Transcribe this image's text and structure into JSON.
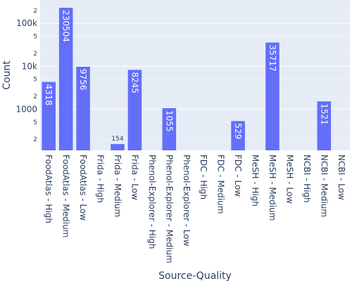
{
  "chart_data": {
    "type": "bar",
    "xlabel": "Source-Quality",
    "ylabel": "Count",
    "yscale": "log",
    "ylim": [
      110,
      350000
    ],
    "grid": true,
    "bar_color": "#636efa",
    "plot_bgcolor": "#e5ecf6",
    "categories": [
      "FoodAtlas - High",
      "FoodAtlas - Medium",
      "FoodAtlas - Low",
      "Frida - High",
      "Frida - Medium",
      "Frida - Low",
      "Phenol-Explorer - High",
      "Phenol-Explorer - Medium",
      "Phenol-Explorer - Low",
      "FDC - High",
      "FDC - Medium",
      "FDC - Low",
      "MeSH - High",
      "MeSH - Medium",
      "MeSH - Low",
      "NCBI - High",
      "NCBI - Medium",
      "NCBI - Low"
    ],
    "values": [
      4318,
      230504,
      9756,
      null,
      154,
      8245,
      null,
      1055,
      null,
      null,
      null,
      529,
      null,
      35717,
      null,
      null,
      1521,
      null
    ],
    "data_labels": [
      "4318",
      "230504",
      "9756",
      "",
      "154",
      "8245",
      "",
      "1055",
      "",
      "",
      "",
      "529",
      "",
      "35717",
      "",
      "",
      "1521",
      ""
    ],
    "y_major_ticks": [
      {
        "value": 1000,
        "label": "1000"
      },
      {
        "value": 10000,
        "label": "10k"
      },
      {
        "value": 100000,
        "label": "100k"
      }
    ],
    "y_minor_ticks": [
      {
        "value": 200,
        "label": "2"
      },
      {
        "value": 500,
        "label": "5"
      },
      {
        "value": 2000,
        "label": "2"
      },
      {
        "value": 5000,
        "label": "5"
      },
      {
        "value": 20000,
        "label": "2"
      },
      {
        "value": 50000,
        "label": "5"
      },
      {
        "value": 200000,
        "label": "2"
      }
    ]
  }
}
